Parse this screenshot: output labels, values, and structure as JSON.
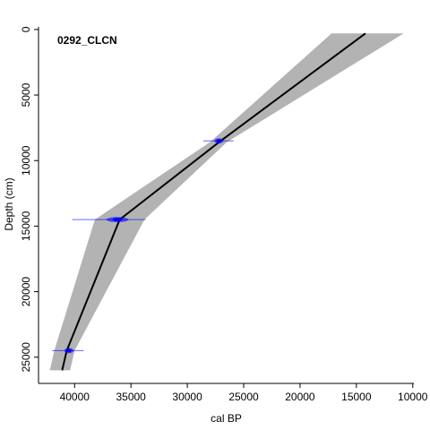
{
  "chart_data": {
    "type": "line",
    "title": "0292_CLCN",
    "xlabel": "cal BP",
    "ylabel": "Depth (cm)",
    "x_reversed": true,
    "y_reversed": true,
    "xlim": [
      43200,
      9900
    ],
    "ylim": [
      -200,
      27000
    ],
    "x_ticks": [
      40000,
      35000,
      30000,
      25000,
      20000,
      15000,
      10000
    ],
    "x_tick_labels": [
      "40000",
      "35000",
      "30000",
      "25000",
      "20000",
      "15000",
      "10000"
    ],
    "y_ticks": [
      0,
      5000,
      10000,
      15000,
      20000,
      25000
    ],
    "y_tick_labels": [
      "0",
      "5000",
      "10000",
      "15000",
      "20000",
      "25000"
    ],
    "series": [
      {
        "kind": "median-age-model",
        "color": "#000000",
        "points": [
          {
            "depth": 300,
            "age": 14200
          },
          {
            "depth": 8600,
            "age": 27200
          },
          {
            "depth": 14500,
            "age": 36000
          },
          {
            "depth": 24500,
            "age": 40700
          },
          {
            "depth": 26000,
            "age": 41100
          }
        ]
      },
      {
        "kind": "uncertainty-envelope",
        "color": "#b3b3b3",
        "points": [
          {
            "depth": 300,
            "older": 17200,
            "younger": 10800
          },
          {
            "depth": 8600,
            "older": 28000,
            "younger": 26500
          },
          {
            "depth": 14500,
            "older": 38200,
            "younger": 33800
          },
          {
            "depth": 24500,
            "older": 41800,
            "younger": 40000
          },
          {
            "depth": 26000,
            "older": 42200,
            "younger": 40400
          }
        ]
      },
      {
        "kind": "calibrated-dates",
        "color": "#0000ff",
        "dates": [
          {
            "depth": 8500,
            "age": 27200,
            "min_age": 25900,
            "max_age": 28600
          },
          {
            "depth": 14500,
            "age": 36200,
            "min_age": 33700,
            "max_age": 40200
          },
          {
            "depth": 24500,
            "age": 40500,
            "min_age": 39200,
            "max_age": 42000
          }
        ]
      }
    ]
  }
}
